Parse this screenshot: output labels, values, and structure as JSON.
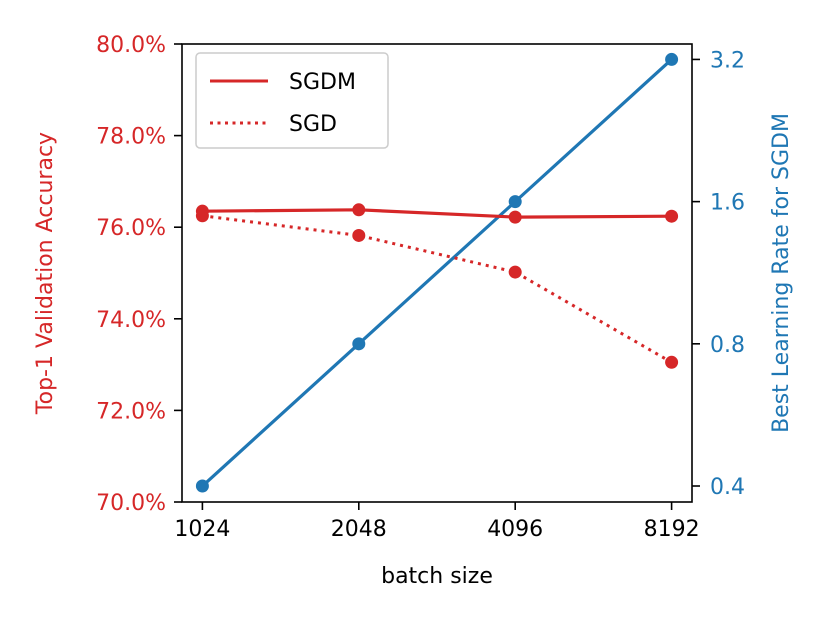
{
  "chart_data": {
    "type": "line",
    "xlabel": "batch size",
    "x_categories": [
      "1024",
      "2048",
      "4096",
      "8192"
    ],
    "left_axis": {
      "label": "Top-1 Validation Accuracy",
      "color": "#d62728",
      "ylim": [
        70.0,
        80.0
      ],
      "ticks": [
        70.0,
        72.0,
        74.0,
        76.0,
        78.0,
        80.0
      ],
      "tick_labels": [
        "70.0%",
        "72.0%",
        "74.0%",
        "76.0%",
        "78.0%",
        "80.0%"
      ]
    },
    "right_axis": {
      "label": "Best Learning Rate for SGDM",
      "color": "#1f77b4",
      "scale": "log2",
      "ylim": [
        0.37,
        3.45
      ],
      "ticks": [
        0.4,
        0.8,
        1.6,
        3.2
      ],
      "tick_labels": [
        "0.4",
        "0.8",
        "1.6",
        "3.2"
      ]
    },
    "series": [
      {
        "name": "SGDM",
        "axis": "left",
        "style": "solid",
        "color": "#d62728",
        "values": [
          76.35,
          76.38,
          76.22,
          76.24
        ]
      },
      {
        "name": "SGD",
        "axis": "left",
        "style": "dotted",
        "color": "#d62728",
        "values": [
          76.25,
          75.82,
          75.02,
          73.05
        ]
      },
      {
        "name": "Best LR (SGDM)",
        "axis": "right",
        "style": "solid",
        "color": "#1f77b4",
        "values": [
          0.4,
          0.8,
          1.6,
          3.2
        ]
      }
    ],
    "legend": {
      "placement": "top-left",
      "entries": [
        "SGDM",
        "SGD"
      ]
    }
  }
}
